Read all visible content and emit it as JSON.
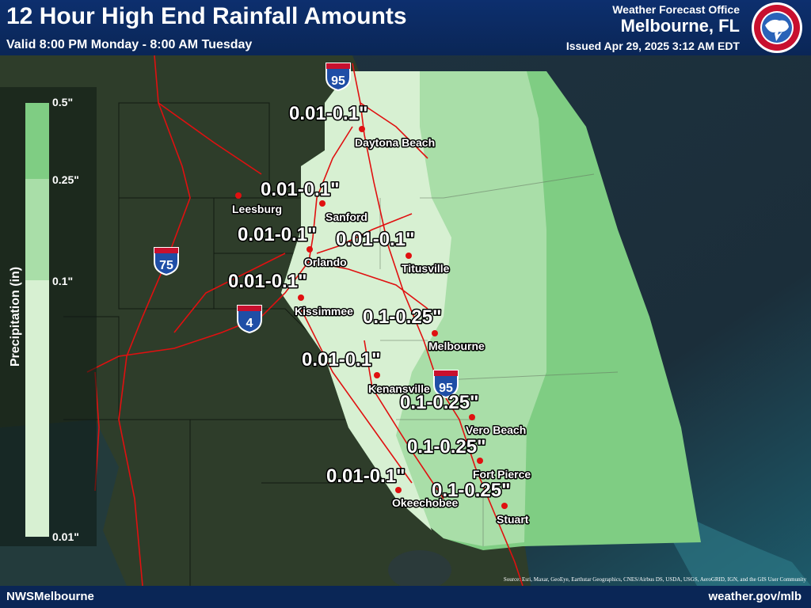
{
  "header": {
    "title": "12 Hour High End Rainfall Amounts",
    "valid": "Valid 8:00 PM Monday - 8:00 AM Tuesday",
    "office_label": "Weather Forecast Office",
    "office_name": "Melbourne, FL",
    "issued": "Issued Apr 29, 2025 3:12 AM EDT"
  },
  "footer": {
    "left": "NWSMelbourne",
    "right": "weather.gov/mlb"
  },
  "map_source": "Source: Esri, Maxar, GeoEye, Earthstar Geographics, CNES/Airbus DS, USDA, USGS, AeroGRID, IGN, and the GIS User Community",
  "legend": {
    "axis_label": "Precipitation (in)",
    "ticks": [
      "0.5\"",
      "0.25\"",
      "0.1\"",
      "0.01\""
    ],
    "colors": [
      "#7fcd83",
      "#a9dea8",
      "#d7f0d2"
    ]
  },
  "highways": {
    "i95": "95",
    "i75": "75",
    "i4": "4",
    "interstate": "INTERSTATE"
  },
  "amount_labels": [
    "0.01-0.1\"",
    "0.01-0.1\"",
    "0.01-0.1\"",
    "0.01-0.1\"",
    "0.01-0.1\"",
    "0.1-0.25\"",
    "0.01-0.1\"",
    "0.1-0.25\"",
    "0.1-0.25\"",
    "0.01-0.1\"",
    "0.1-0.25\""
  ],
  "cities": [
    "Daytona Beach",
    "Leesburg",
    "Sanford",
    "Orlando",
    "Titusville",
    "Kissimmee",
    "Melbourne",
    "Kenansville",
    "Vero Beach",
    "Fort Pierce",
    "Okeechobee",
    "Stuart"
  ]
}
